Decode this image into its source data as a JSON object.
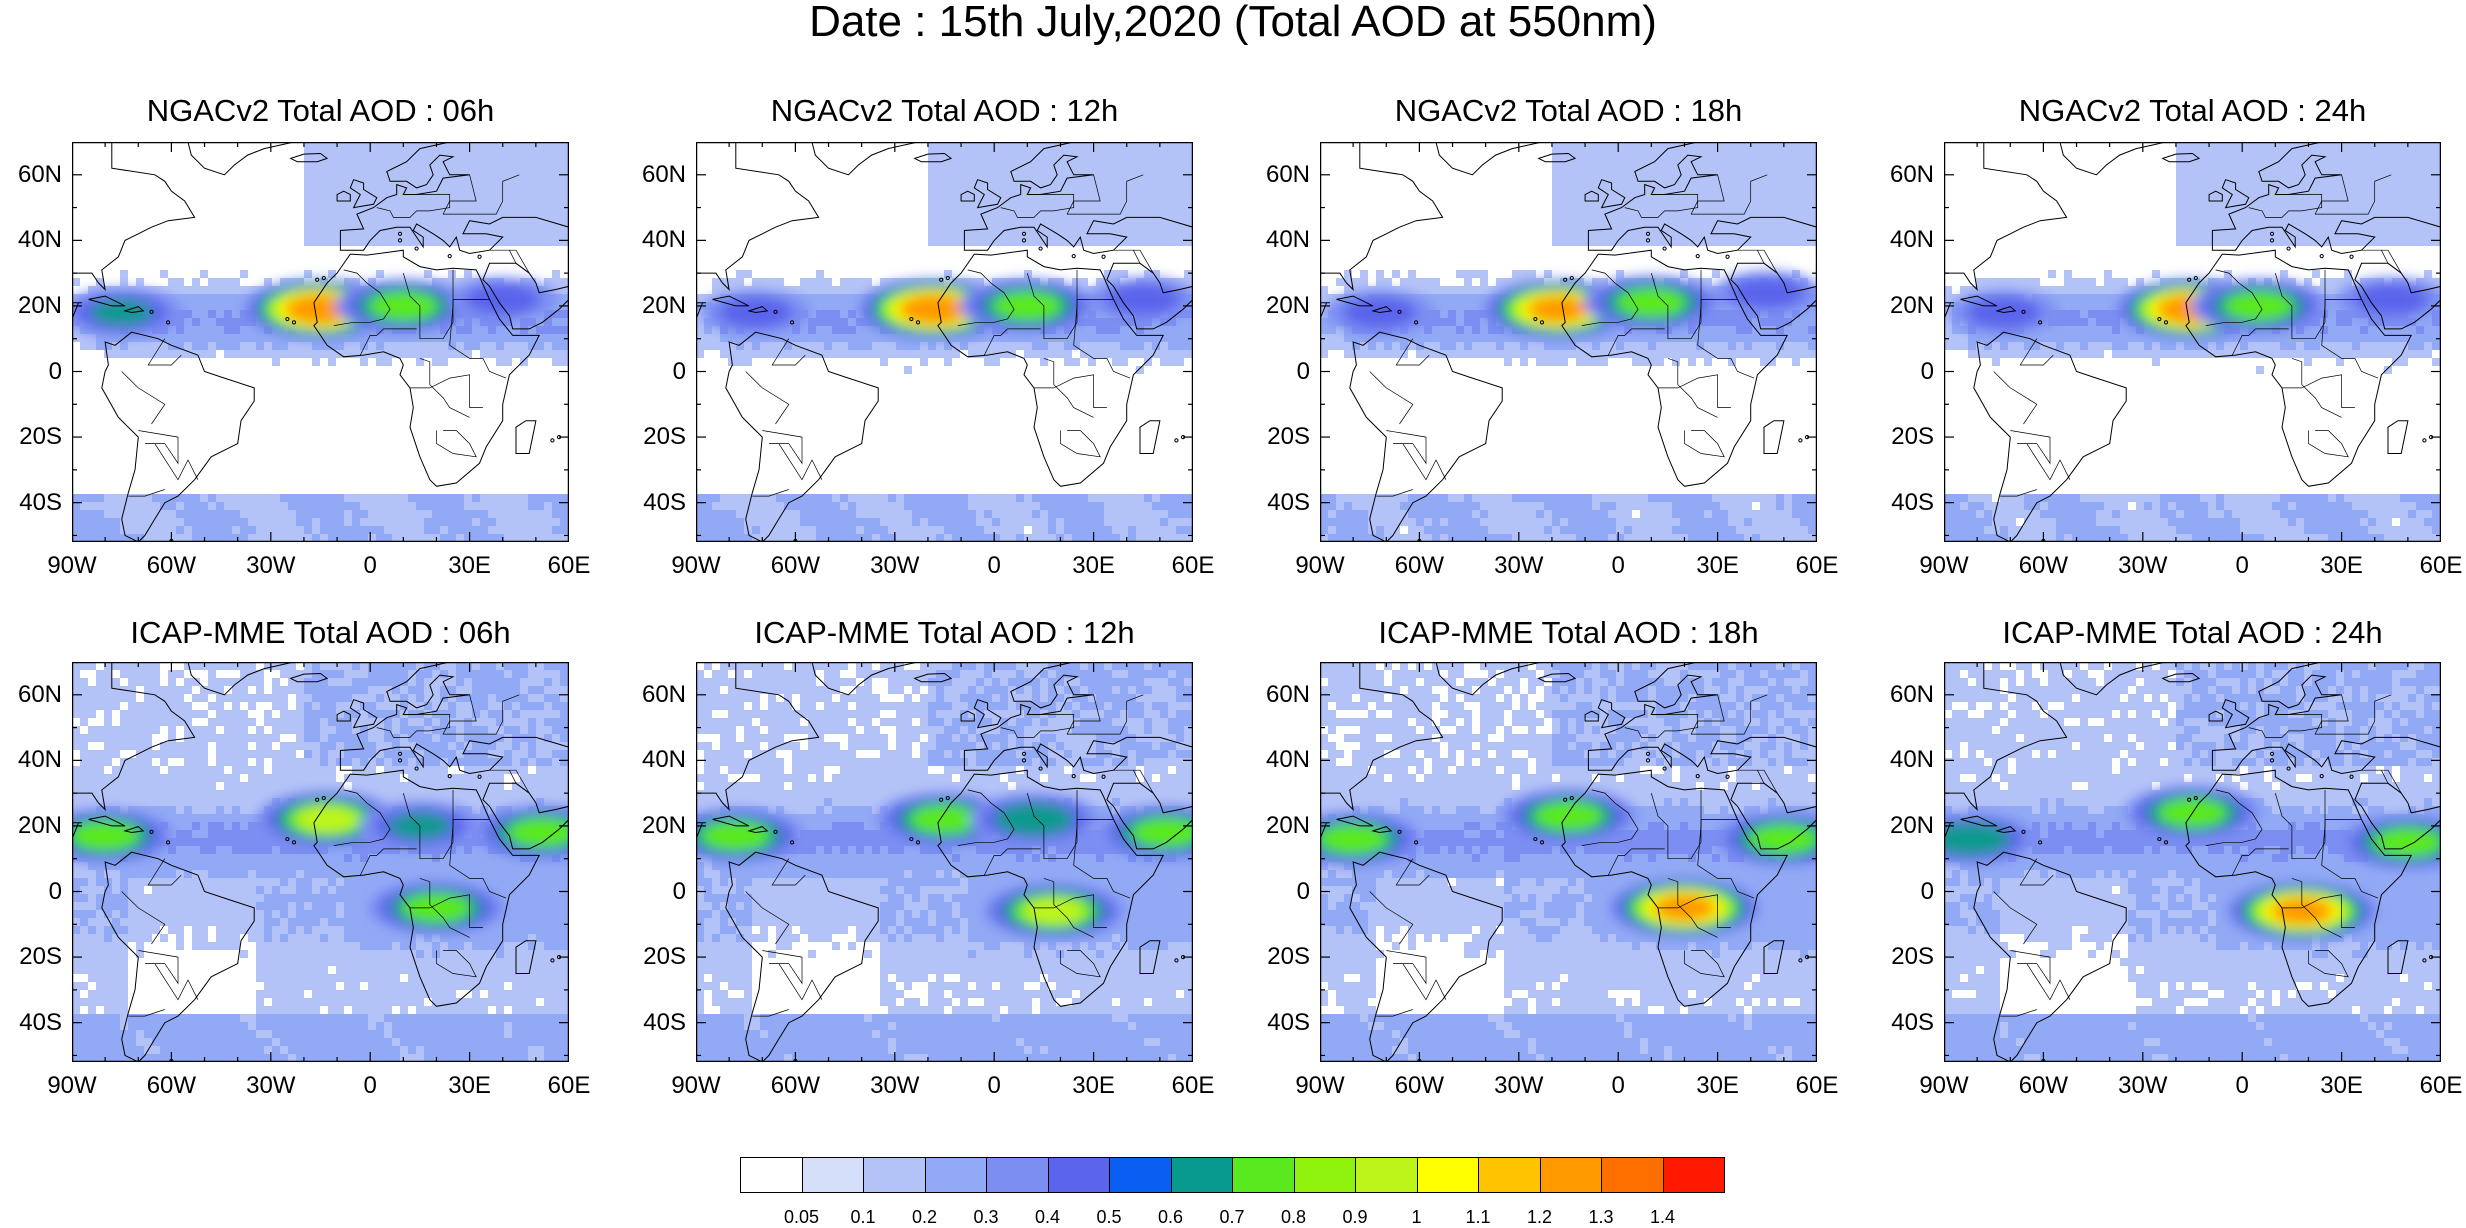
{
  "title": "Date : 15th July,2020 (Total AOD at 550nm)",
  "lat_ticks": [
    "60N",
    "40N",
    "20N",
    "0",
    "20S",
    "40S"
  ],
  "lon_ticks": [
    "90W",
    "60W",
    "30W",
    "0",
    "30E",
    "60E"
  ],
  "panels": [
    {
      "title": "NGACv2 Total AOD : 06h",
      "model": "NGACv2",
      "hour": "06h",
      "plumes": [
        {
          "lon": -15,
          "lat": 19,
          "level": 1.3
        },
        {
          "lon": -75,
          "lat": 18,
          "level": 0.6
        },
        {
          "lon": 10,
          "lat": 20,
          "level": 0.8
        },
        {
          "lon": 40,
          "lat": 22,
          "level": 0.5
        }
      ]
    },
    {
      "title": "NGACv2 Total AOD : 12h",
      "model": "NGACv2",
      "hour": "12h",
      "plumes": [
        {
          "lon": -18,
          "lat": 19,
          "level": 1.3
        },
        {
          "lon": -72,
          "lat": 18,
          "level": 0.5
        },
        {
          "lon": 10,
          "lat": 20,
          "level": 0.8
        },
        {
          "lon": 45,
          "lat": 22,
          "level": 0.5
        }
      ]
    },
    {
      "title": "NGACv2 Total AOD : 18h",
      "model": "NGACv2",
      "hour": "18h",
      "plumes": [
        {
          "lon": -18,
          "lat": 19,
          "level": 1.2
        },
        {
          "lon": -72,
          "lat": 18,
          "level": 0.5
        },
        {
          "lon": 10,
          "lat": 21,
          "level": 0.8
        },
        {
          "lon": 45,
          "lat": 24,
          "level": 0.5
        }
      ]
    },
    {
      "title": "NGACv2 Total AOD : 24h",
      "model": "NGACv2",
      "hour": "24h",
      "plumes": [
        {
          "lon": -15,
          "lat": 19,
          "level": 1.3
        },
        {
          "lon": -72,
          "lat": 18,
          "level": 0.5
        },
        {
          "lon": 5,
          "lat": 20,
          "level": 0.8
        },
        {
          "lon": 45,
          "lat": 22,
          "level": 0.5
        }
      ]
    },
    {
      "title": "ICAP-MME Total AOD : 06h",
      "model": "ICAP-MME",
      "hour": "06h",
      "plumes": [
        {
          "lon": -80,
          "lat": 17,
          "level": 0.8
        },
        {
          "lon": -13,
          "lat": 22,
          "level": 0.9
        },
        {
          "lon": 20,
          "lat": -5,
          "level": 0.8
        },
        {
          "lon": 52,
          "lat": 18,
          "level": 0.8
        },
        {
          "lon": 15,
          "lat": 20,
          "level": 0.6
        }
      ]
    },
    {
      "title": "ICAP-MME Total AOD : 12h",
      "model": "ICAP-MME",
      "hour": "12h",
      "plumes": [
        {
          "lon": -78,
          "lat": 17,
          "level": 0.8
        },
        {
          "lon": -15,
          "lat": 22,
          "level": 0.8
        },
        {
          "lon": 18,
          "lat": -6,
          "level": 0.9
        },
        {
          "lon": 52,
          "lat": 18,
          "level": 0.8
        },
        {
          "lon": 12,
          "lat": 22,
          "level": 0.7
        }
      ]
    },
    {
      "title": "ICAP-MME Total AOD : 18h",
      "model": "ICAP-MME",
      "hour": "18h",
      "plumes": [
        {
          "lon": -80,
          "lat": 16,
          "level": 0.8
        },
        {
          "lon": -15,
          "lat": 23,
          "level": 0.8
        },
        {
          "lon": 20,
          "lat": -5,
          "level": 1.2
        },
        {
          "lon": 50,
          "lat": 16,
          "level": 0.8
        }
      ]
    },
    {
      "title": "ICAP-MME Total AOD : 24h",
      "model": "ICAP-MME",
      "hour": "24h",
      "plumes": [
        {
          "lon": -82,
          "lat": 16,
          "level": 0.7
        },
        {
          "lon": -15,
          "lat": 24,
          "level": 0.8
        },
        {
          "lon": 18,
          "lat": -6,
          "level": 1.2
        },
        {
          "lon": 50,
          "lat": 15,
          "level": 0.8
        }
      ]
    }
  ],
  "colorbar": {
    "labels": [
      "0.05",
      "0.1",
      "0.2",
      "0.3",
      "0.4",
      "0.5",
      "0.6",
      "0.7",
      "0.8",
      "0.9",
      "1",
      "1.1",
      "1.2",
      "1.3",
      "1.4"
    ],
    "colors": [
      "#ffffff",
      "#d6dffa",
      "#b4c3f7",
      "#92aaf5",
      "#7c8ef2",
      "#5a64ec",
      "#0b5ef2",
      "#08998f",
      "#5ae91e",
      "#8ff20d",
      "#bdf51a",
      "#ffff00",
      "#ffc300",
      "#ff9a00",
      "#ff6f00",
      "#ff1900"
    ]
  }
}
